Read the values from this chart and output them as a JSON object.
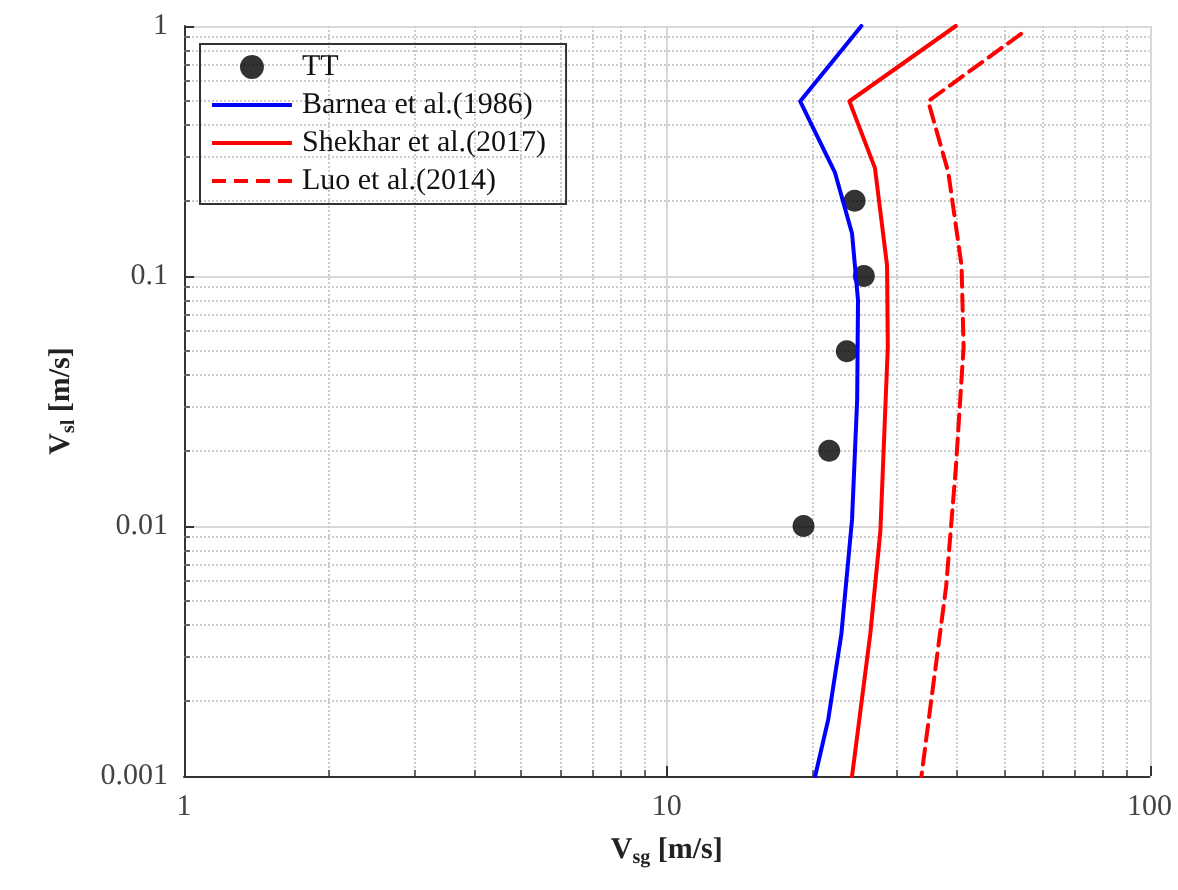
{
  "chart_data": {
    "type": "line",
    "xlabel": "V$_{sg}$ [m/s]",
    "ylabel": "V$_{sl}$ [m/s]",
    "log": "xy",
    "xlim": [
      1,
      100
    ],
    "ylim": [
      0.001,
      1
    ],
    "xticks": [
      1,
      10,
      100
    ],
    "yticks": [
      0.001,
      0.01,
      0.1,
      1
    ],
    "grid": true,
    "legend": "top left",
    "series": [
      {
        "name": "TT",
        "type": "scatter",
        "color": "#000000",
        "marker": "circle",
        "x": [
          24.5,
          25.6,
          23.6,
          21.7,
          19.2
        ],
        "values": [
          0.2,
          0.1,
          0.05,
          0.02,
          0.01
        ]
      },
      {
        "name": "Barnea et al.(1986)",
        "type": "line",
        "color": "#0000ff",
        "marker": "none",
        "line_style": "solid",
        "x": [
          25.3,
          18.9,
          22.3,
          24.2,
          24.9,
          24.8,
          24.2,
          23.0,
          21.6,
          20.3
        ],
        "values": [
          1,
          0.5,
          0.26,
          0.148,
          0.08,
          0.032,
          0.0106,
          0.0037,
          0.00168,
          0.001
        ]
      },
      {
        "name": "Shekhar et al.(2017)",
        "type": "line",
        "color": "#ff0000",
        "marker": "none",
        "line_style": "solid",
        "x": [
          39.7,
          23.9,
          27.0,
          28.6,
          28.7,
          27.7,
          26.4,
          24.5,
          24.2
        ],
        "values": [
          1,
          0.5,
          0.27,
          0.11,
          0.052,
          0.0095,
          0.0037,
          0.0012,
          0.001
        ]
      },
      {
        "name": "Luo et al.(2014)",
        "type": "line",
        "color": "#ff0000",
        "marker": "none",
        "line_style": "dashed",
        "x": [
          54.2,
          34.8,
          38.3,
          40.8,
          41.2,
          39.7,
          37.9,
          35.3,
          33.7
        ],
        "values": [
          0.93,
          0.5,
          0.26,
          0.11,
          0.052,
          0.017,
          0.0057,
          0.002,
          0.001
        ]
      }
    ]
  }
}
